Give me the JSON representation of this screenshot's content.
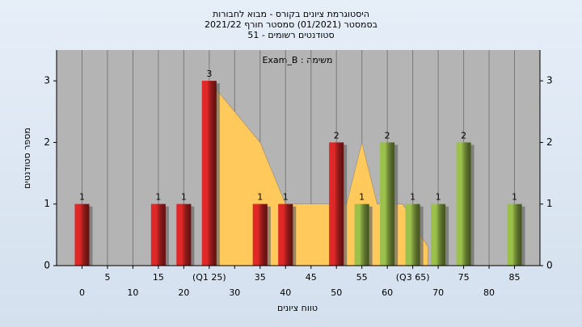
{
  "chart_data": {
    "type": "bar",
    "title": [
      "היסטוגרמת ציונים בקורס - מבוא לחבורות",
      "בסמסטר (01/2021) סמסטר חורף 2021/22",
      "סטודנטים רשומים - 51"
    ],
    "subtitle": "משימה : Exam_B",
    "x_label": "טווח ציונים",
    "y_label": "מספר סטודנטים",
    "x": [
      0,
      15,
      20,
      25,
      35,
      40,
      50,
      55,
      60,
      65,
      70,
      75,
      85
    ],
    "values": [
      1,
      1,
      1,
      3,
      1,
      1,
      2,
      1,
      2,
      1,
      1,
      2,
      1
    ],
    "bar_colors": [
      "#e02828",
      "#e02828",
      "#e02828",
      "#e02828",
      "#e02828",
      "#e02828",
      "#e02828",
      "#9cc04c",
      "#9cc04c",
      "#9cc04c",
      "#9cc04c",
      "#9cc04c",
      "#9cc04c"
    ],
    "area": {
      "color": "#ffc95c",
      "x": [
        25,
        35,
        40,
        52,
        55,
        58,
        63,
        68
      ],
      "values": [
        3,
        2,
        1,
        1,
        2,
        1,
        1,
        0.3
      ]
    },
    "xlim": [
      -5,
      90
    ],
    "xticks": [
      0,
      5,
      10,
      15,
      20,
      {
        "value": 25,
        "label": "(Q1 25)"
      },
      30,
      35,
      40,
      45,
      50,
      55,
      60,
      {
        "value": 65,
        "label": "(Q3 65)"
      },
      70,
      75,
      80,
      85
    ],
    "ylim": [
      0,
      3.5
    ],
    "yticks": [
      0,
      1,
      2,
      3
    ],
    "grid": "x"
  }
}
